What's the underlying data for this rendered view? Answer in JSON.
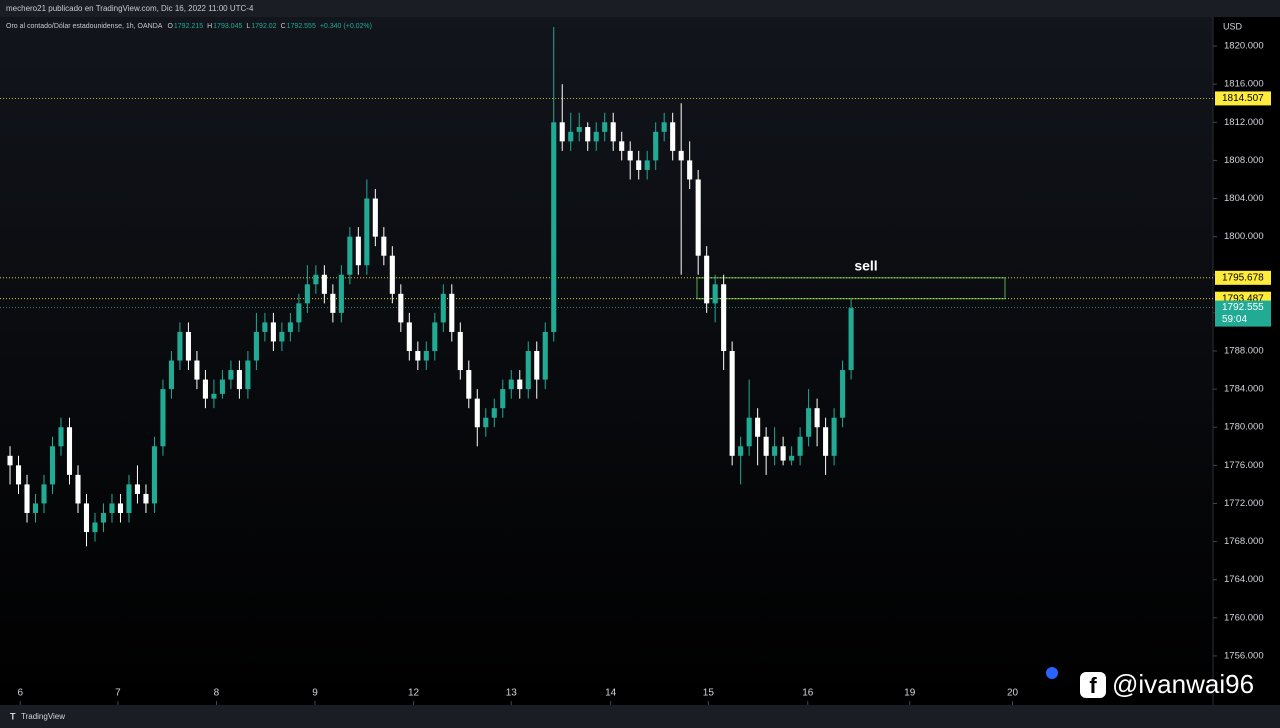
{
  "header": {
    "credit": "mechero21 publicado en TradingView.com, Dic 16, 2022 11:00 UTC-4",
    "symbol": "Oro al contado/Dólar estadounidense, 1h, OANDA",
    "ohlc": [
      {
        "key": "O",
        "value": 1792.215
      },
      {
        "key": "H",
        "value": 1793.045
      },
      {
        "key": "L",
        "value": 1792.02
      },
      {
        "key": "C",
        "value": 1792.555
      }
    ],
    "change": "+0.340 (+0.02%)"
  },
  "chart_data": {
    "type": "candlestick",
    "currency": "USD",
    "up_color": "#22ab94",
    "down_color": "#ffffff",
    "xlim": [
      -1.18,
      141.6
    ],
    "ylim": [
      1750.85,
      1823.05
    ],
    "xticks": [
      {
        "value": 1.2,
        "label": "6"
      },
      {
        "value": 12.7,
        "label": "7"
      },
      {
        "value": 24.3,
        "label": "8"
      },
      {
        "value": 35.9,
        "label": "9"
      },
      {
        "value": 47.5,
        "label": "12"
      },
      {
        "value": 59,
        "label": "13"
      },
      {
        "value": 70.7,
        "label": "14"
      },
      {
        "value": 82.2,
        "label": "15"
      },
      {
        "value": 93.9,
        "label": "16"
      },
      {
        "value": 105.9,
        "label": "19"
      },
      {
        "value": 118,
        "label": "20"
      }
    ],
    "yticks": [
      {
        "value": 1756,
        "label": "1756.000"
      },
      {
        "value": 1760,
        "label": "1760.000"
      },
      {
        "value": 1764,
        "label": "1764.000"
      },
      {
        "value": 1768,
        "label": "1768.000"
      },
      {
        "value": 1772,
        "label": "1772.000"
      },
      {
        "value": 1776,
        "label": "1776.000"
      },
      {
        "value": 1780,
        "label": "1780.000"
      },
      {
        "value": 1784,
        "label": "1784.000"
      },
      {
        "value": 1788,
        "label": "1788.000"
      },
      {
        "value": 1792,
        "label": "1792.000"
      },
      {
        "value": 1796,
        "label": "1796.000"
      },
      {
        "value": 1800,
        "label": "1800.000"
      },
      {
        "value": 1804,
        "label": "1804.000"
      },
      {
        "value": 1808,
        "label": "1808.000"
      },
      {
        "value": 1812,
        "label": "1812.000"
      },
      {
        "value": 1816,
        "label": "1816.000"
      },
      {
        "value": 1820,
        "label": "1820.000"
      }
    ],
    "levels": [
      {
        "value": 1814.507,
        "color": "#ffeb3b"
      },
      {
        "value": 1795.678,
        "color": "#ffeb3b"
      },
      {
        "value": 1793.487,
        "color": "#ffeb3b"
      }
    ],
    "last_price": {
      "value": 1792.555,
      "countdown": "59:04",
      "color": "#22ab94"
    },
    "zone": {
      "label": "sell",
      "color": "#4caf50"
    },
    "ohlc": [
      [
        1777,
        1778,
        1774,
        1776
      ],
      [
        1776,
        1777,
        1773,
        1774
      ],
      [
        1774,
        1775,
        1770,
        1771
      ],
      [
        1771,
        1773,
        1770,
        1772
      ],
      [
        1772,
        1775,
        1771,
        1774
      ],
      [
        1774,
        1779,
        1773,
        1778
      ],
      [
        1778,
        1781,
        1777,
        1780
      ],
      [
        1780,
        1781,
        1774,
        1775
      ],
      [
        1775,
        1776,
        1771,
        1772
      ],
      [
        1772,
        1773,
        1767.5,
        1769
      ],
      [
        1769,
        1771,
        1768,
        1770
      ],
      [
        1770,
        1772,
        1769,
        1771
      ],
      [
        1771,
        1773,
        1770,
        1772
      ],
      [
        1772,
        1773,
        1770,
        1771
      ],
      [
        1771,
        1775,
        1770,
        1774
      ],
      [
        1774,
        1776,
        1772,
        1773
      ],
      [
        1773,
        1774,
        1771,
        1772
      ],
      [
        1772,
        1779,
        1771,
        1778
      ],
      [
        1778,
        1785,
        1777,
        1784
      ],
      [
        1784,
        1788,
        1783,
        1787
      ],
      [
        1787,
        1791,
        1786,
        1790
      ],
      [
        1790,
        1791,
        1786,
        1787
      ],
      [
        1787,
        1788,
        1784,
        1785
      ],
      [
        1785,
        1786,
        1782,
        1783
      ],
      [
        1783,
        1785,
        1782,
        1783.5
      ],
      [
        1783.5,
        1786,
        1783,
        1785
      ],
      [
        1785,
        1787,
        1784,
        1786
      ],
      [
        1786,
        1787,
        1783,
        1784
      ],
      [
        1784,
        1788,
        1783,
        1787
      ],
      [
        1787,
        1792,
        1786,
        1790
      ],
      [
        1790,
        1792,
        1789,
        1791
      ],
      [
        1791,
        1792,
        1788,
        1789
      ],
      [
        1789,
        1791,
        1788,
        1790
      ],
      [
        1790,
        1792,
        1789,
        1791
      ],
      [
        1791,
        1794,
        1790,
        1793
      ],
      [
        1793,
        1797,
        1792,
        1795
      ],
      [
        1795,
        1797,
        1794,
        1796
      ],
      [
        1796,
        1797,
        1793,
        1794
      ],
      [
        1794,
        1795,
        1791,
        1792
      ],
      [
        1792,
        1797,
        1791,
        1796
      ],
      [
        1796,
        1801,
        1795,
        1800
      ],
      [
        1800,
        1801,
        1796,
        1797
      ],
      [
        1797,
        1806,
        1796,
        1804
      ],
      [
        1804,
        1805,
        1799,
        1800
      ],
      [
        1800,
        1801,
        1797,
        1798
      ],
      [
        1798,
        1799,
        1793,
        1794
      ],
      [
        1794,
        1795,
        1790,
        1791
      ],
      [
        1791,
        1792,
        1787,
        1788
      ],
      [
        1788,
        1789,
        1786,
        1787
      ],
      [
        1787,
        1789,
        1786,
        1788
      ],
      [
        1788,
        1792,
        1787,
        1791
      ],
      [
        1791,
        1795,
        1790,
        1794
      ],
      [
        1794,
        1795,
        1789,
        1790
      ],
      [
        1790,
        1791,
        1785,
        1786
      ],
      [
        1786,
        1787,
        1782,
        1783
      ],
      [
        1783,
        1784,
        1778,
        1780
      ],
      [
        1780,
        1782,
        1779,
        1781
      ],
      [
        1781,
        1783,
        1780,
        1782
      ],
      [
        1782,
        1785,
        1781,
        1784
      ],
      [
        1784,
        1786,
        1783,
        1785
      ],
      [
        1785,
        1786,
        1783,
        1784
      ],
      [
        1784,
        1789,
        1783,
        1788
      ],
      [
        1788,
        1789,
        1783,
        1785
      ],
      [
        1785,
        1791,
        1784,
        1790
      ],
      [
        1790,
        1822,
        1789,
        1812
      ],
      [
        1812,
        1816,
        1809,
        1810
      ],
      [
        1810,
        1813,
        1809,
        1811
      ],
      [
        1811,
        1813,
        1810,
        1811.5
      ],
      [
        1811.5,
        1812,
        1809,
        1810
      ],
      [
        1810,
        1812,
        1809,
        1811
      ],
      [
        1811,
        1813,
        1810,
        1812
      ],
      [
        1812,
        1813,
        1809,
        1810
      ],
      [
        1810,
        1811,
        1808,
        1809
      ],
      [
        1809,
        1810,
        1806,
        1808
      ],
      [
        1808,
        1809,
        1806,
        1807
      ],
      [
        1807,
        1809,
        1806,
        1808
      ],
      [
        1808,
        1812,
        1807,
        1811
      ],
      [
        1811,
        1813,
        1810,
        1812
      ],
      [
        1812,
        1813,
        1808,
        1809
      ],
      [
        1809,
        1814,
        1796,
        1808
      ],
      [
        1808,
        1810,
        1805,
        1806
      ],
      [
        1806,
        1807,
        1796,
        1798
      ],
      [
        1798,
        1799,
        1792,
        1793
      ],
      [
        1793,
        1796,
        1791,
        1795
      ],
      [
        1795,
        1796,
        1786,
        1788
      ],
      [
        1788,
        1789,
        1776,
        1777
      ],
      [
        1777,
        1779,
        1774,
        1778
      ],
      [
        1778,
        1785,
        1777,
        1781
      ],
      [
        1781,
        1782,
        1776,
        1779
      ],
      [
        1779,
        1780,
        1775,
        1777
      ],
      [
        1777,
        1780,
        1776,
        1778
      ],
      [
        1778,
        1779,
        1776,
        1776.5
      ],
      [
        1776.5,
        1778,
        1776,
        1777
      ],
      [
        1777,
        1780,
        1776,
        1779
      ],
      [
        1779,
        1784,
        1778,
        1782
      ],
      [
        1782,
        1783,
        1778,
        1780
      ],
      [
        1780,
        1781,
        1775,
        1777
      ],
      [
        1777,
        1782,
        1776,
        1781
      ],
      [
        1781,
        1787,
        1780,
        1786
      ],
      [
        1786,
        1793.5,
        1785,
        1792.5
      ]
    ]
  },
  "watermark": {
    "handle": "@ivanwai96"
  },
  "footer": {
    "brand": "TradingView"
  }
}
